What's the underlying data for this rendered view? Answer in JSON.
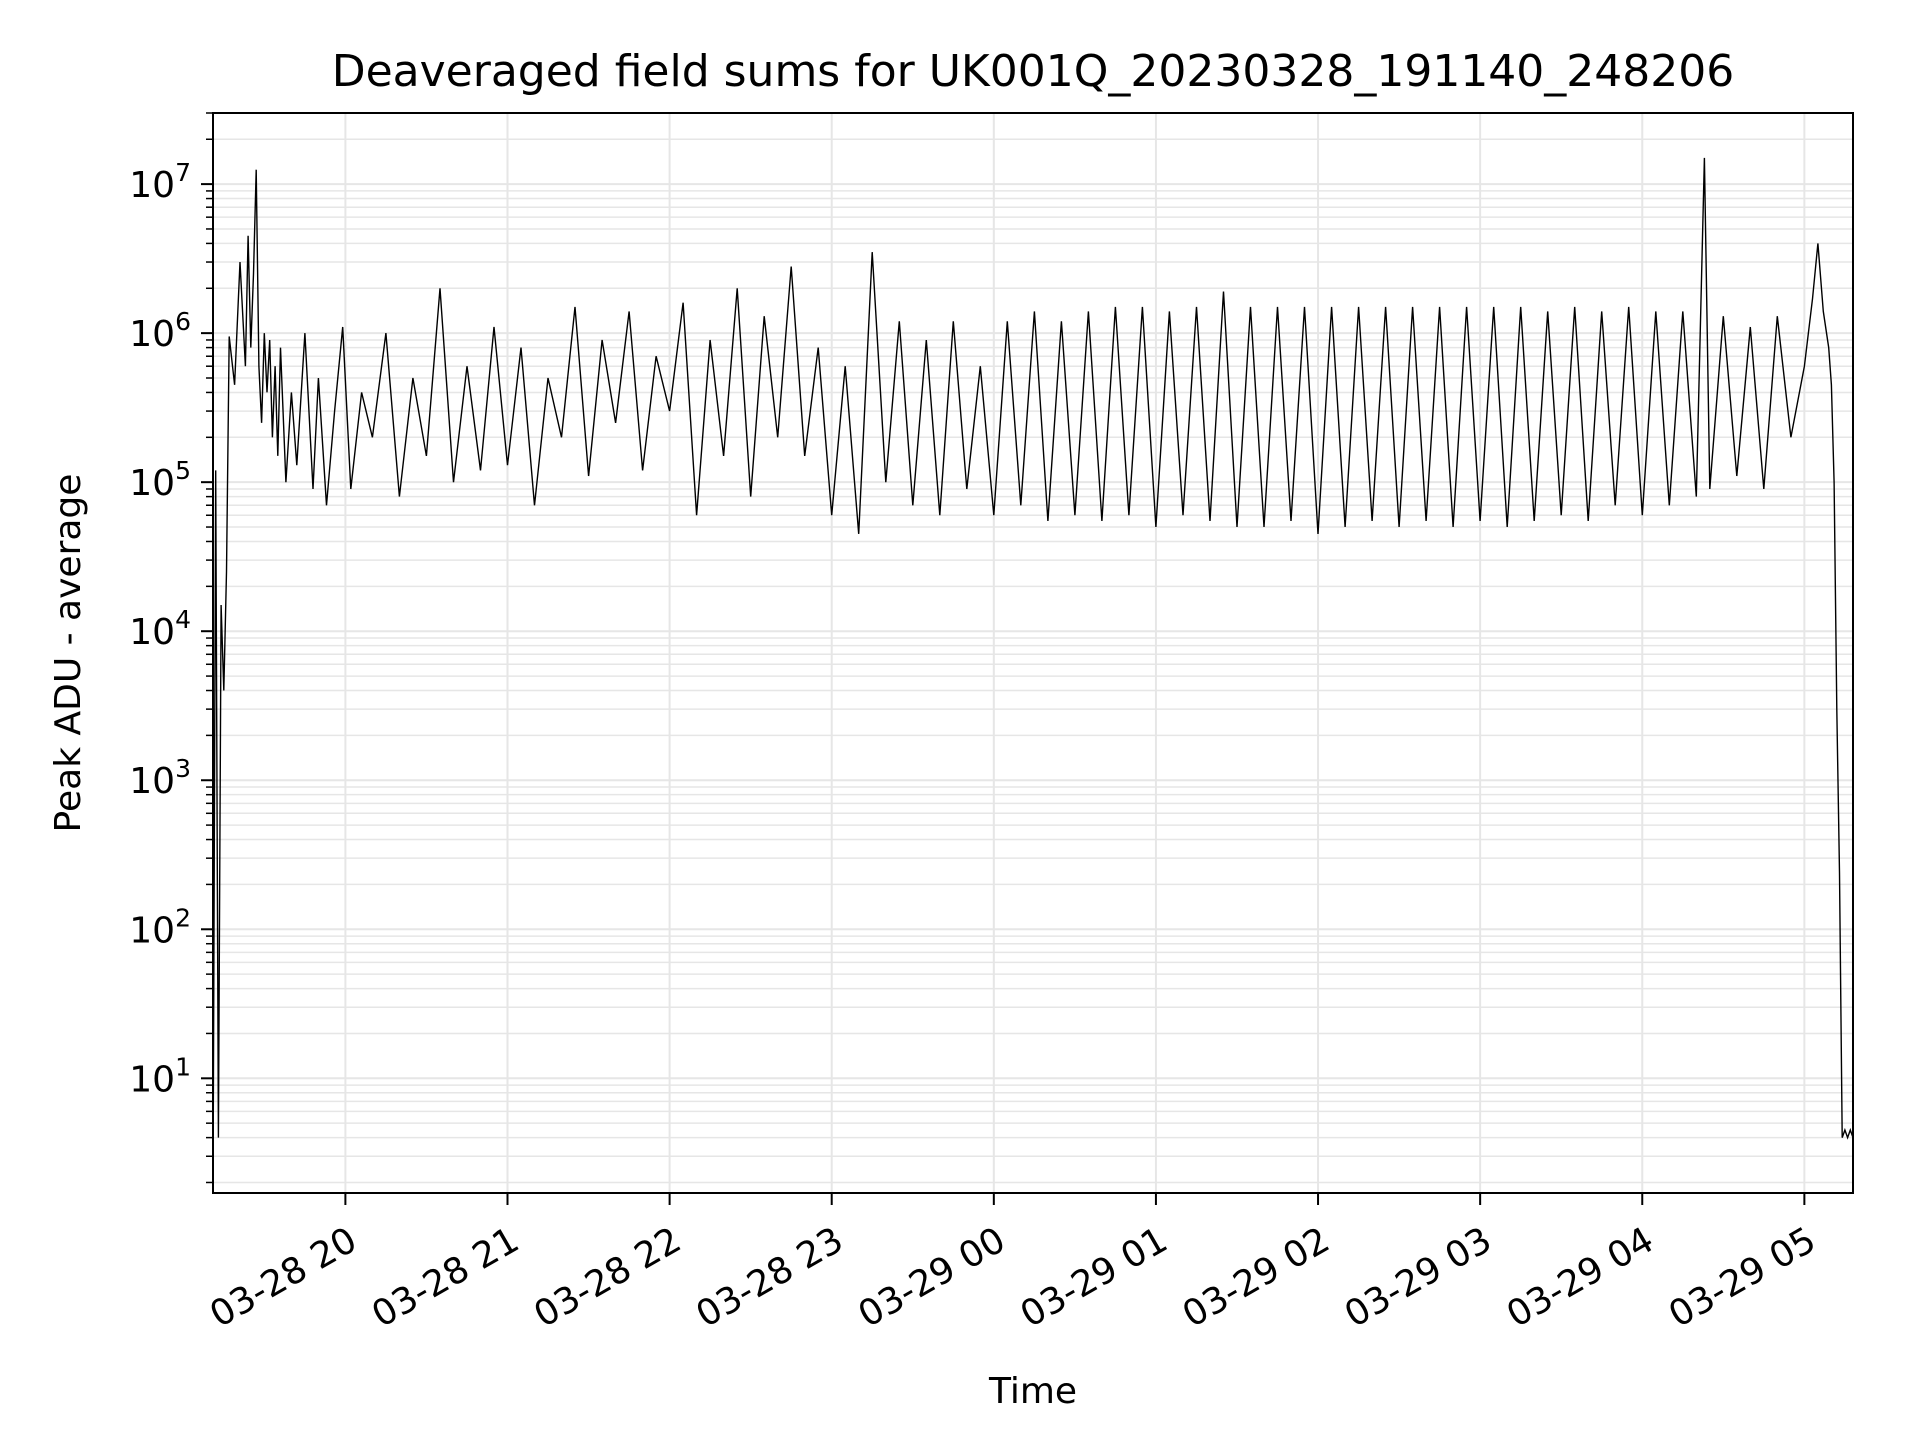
{
  "chart_data": {
    "type": "line",
    "title": "Deaveraged field sums for UK001Q_20230328_191140_248206",
    "xlabel": "Time",
    "ylabel": "Peak ADU - average",
    "yscale": "log",
    "grid": true,
    "grid_color": "#e6e6e6",
    "line_color": "#000000",
    "xlim": [
      "2023-03-28 19:11",
      "2023-03-29 05:18"
    ],
    "ylim": [
      1.7,
      30000000
    ],
    "x_ticks": [
      {
        "value": "2023-03-28 20:00",
        "label": "03-28 20"
      },
      {
        "value": "2023-03-28 21:00",
        "label": "03-28 21"
      },
      {
        "value": "2023-03-28 22:00",
        "label": "03-28 22"
      },
      {
        "value": "2023-03-28 23:00",
        "label": "03-28 23"
      },
      {
        "value": "2023-03-29 00:00",
        "label": "03-29 00"
      },
      {
        "value": "2023-03-29 01:00",
        "label": "03-29 01"
      },
      {
        "value": "2023-03-29 02:00",
        "label": "03-29 02"
      },
      {
        "value": "2023-03-29 03:00",
        "label": "03-29 03"
      },
      {
        "value": "2023-03-29 04:00",
        "label": "03-29 04"
      },
      {
        "value": "2023-03-29 05:00",
        "label": "03-29 05"
      }
    ],
    "y_ticks": [
      {
        "value": 10,
        "base": "10",
        "exp": "1"
      },
      {
        "value": 100,
        "base": "10",
        "exp": "2"
      },
      {
        "value": 1000,
        "base": "10",
        "exp": "3"
      },
      {
        "value": 10000,
        "base": "10",
        "exp": "4"
      },
      {
        "value": 100000,
        "base": "10",
        "exp": "5"
      },
      {
        "value": 1000000,
        "base": "10",
        "exp": "6"
      },
      {
        "value": 10000000,
        "base": "10",
        "exp": "7"
      }
    ],
    "series": [
      {
        "x": [
          "2023-03-28 19:11",
          "2023-03-28 19:12",
          "2023-03-28 19:13",
          "2023-03-28 19:14",
          "2023-03-28 19:15",
          "2023-03-28 19:16",
          "2023-03-28 19:17",
          "2023-03-28 19:19",
          "2023-03-28 19:21",
          "2023-03-28 19:23",
          "2023-03-28 19:24",
          "2023-03-28 19:25",
          "2023-03-28 19:26",
          "2023-03-28 19:27",
          "2023-03-28 19:28",
          "2023-03-28 19:29",
          "2023-03-28 19:30",
          "2023-03-28 19:31",
          "2023-03-28 19:32",
          "2023-03-28 19:33",
          "2023-03-28 19:34",
          "2023-03-28 19:35",
          "2023-03-28 19:36",
          "2023-03-28 19:38",
          "2023-03-28 19:40",
          "2023-03-28 19:42",
          "2023-03-28 19:45",
          "2023-03-28 19:48",
          "2023-03-28 19:50",
          "2023-03-28 19:53",
          "2023-03-28 19:56",
          "2023-03-28 19:59",
          "2023-03-28 20:02",
          "2023-03-28 20:06",
          "2023-03-28 20:10",
          "2023-03-28 20:15",
          "2023-03-28 20:20",
          "2023-03-28 20:25",
          "2023-03-28 20:30",
          "2023-03-28 20:35",
          "2023-03-28 20:40",
          "2023-03-28 20:45",
          "2023-03-28 20:50",
          "2023-03-28 20:55",
          "2023-03-28 21:00",
          "2023-03-28 21:05",
          "2023-03-28 21:10",
          "2023-03-28 21:15",
          "2023-03-28 21:20",
          "2023-03-28 21:25",
          "2023-03-28 21:30",
          "2023-03-28 21:35",
          "2023-03-28 21:40",
          "2023-03-28 21:45",
          "2023-03-28 21:50",
          "2023-03-28 21:55",
          "2023-03-28 22:00",
          "2023-03-28 22:05",
          "2023-03-28 22:10",
          "2023-03-28 22:15",
          "2023-03-28 22:20",
          "2023-03-28 22:25",
          "2023-03-28 22:30",
          "2023-03-28 22:35",
          "2023-03-28 22:40",
          "2023-03-28 22:45",
          "2023-03-28 22:50",
          "2023-03-28 22:55",
          "2023-03-28 23:00",
          "2023-03-28 23:05",
          "2023-03-28 23:10",
          "2023-03-28 23:15",
          "2023-03-28 23:20",
          "2023-03-28 23:25",
          "2023-03-28 23:30",
          "2023-03-28 23:35",
          "2023-03-28 23:40",
          "2023-03-28 23:45",
          "2023-03-28 23:50",
          "2023-03-28 23:55",
          "2023-03-29 00:00",
          "2023-03-29 00:05",
          "2023-03-29 00:10",
          "2023-03-29 00:15",
          "2023-03-29 00:20",
          "2023-03-29 00:25",
          "2023-03-29 00:30",
          "2023-03-29 00:35",
          "2023-03-29 00:40",
          "2023-03-29 00:45",
          "2023-03-29 00:50",
          "2023-03-29 00:55",
          "2023-03-29 01:00",
          "2023-03-29 01:05",
          "2023-03-29 01:10",
          "2023-03-29 01:15",
          "2023-03-29 01:20",
          "2023-03-29 01:25",
          "2023-03-29 01:30",
          "2023-03-29 01:35",
          "2023-03-29 01:40",
          "2023-03-29 01:45",
          "2023-03-29 01:50",
          "2023-03-29 01:55",
          "2023-03-29 02:00",
          "2023-03-29 02:05",
          "2023-03-29 02:10",
          "2023-03-29 02:15",
          "2023-03-29 02:20",
          "2023-03-29 02:25",
          "2023-03-29 02:30",
          "2023-03-29 02:35",
          "2023-03-29 02:40",
          "2023-03-29 02:45",
          "2023-03-29 02:50",
          "2023-03-29 02:55",
          "2023-03-29 03:00",
          "2023-03-29 03:05",
          "2023-03-29 03:10",
          "2023-03-29 03:15",
          "2023-03-29 03:20",
          "2023-03-29 03:25",
          "2023-03-29 03:30",
          "2023-03-29 03:35",
          "2023-03-29 03:40",
          "2023-03-29 03:45",
          "2023-03-29 03:50",
          "2023-03-29 03:55",
          "2023-03-29 04:00",
          "2023-03-29 04:05",
          "2023-03-29 04:10",
          "2023-03-29 04:15",
          "2023-03-29 04:20",
          "2023-03-29 04:23",
          "2023-03-29 04:25",
          "2023-03-29 04:30",
          "2023-03-29 04:35",
          "2023-03-29 04:40",
          "2023-03-29 04:45",
          "2023-03-29 04:50",
          "2023-03-29 04:55",
          "2023-03-29 05:00",
          "2023-03-29 05:03",
          "2023-03-29 05:05",
          "2023-03-29 05:07",
          "2023-03-29 05:09",
          "2023-03-29 05:10",
          "2023-03-29 05:11",
          "2023-03-29 05:12",
          "2023-03-29 05:13",
          "2023-03-29 05:14",
          "2023-03-29 05:15",
          "2023-03-29 05:16",
          "2023-03-29 05:17",
          "2023-03-29 05:18"
        ],
        "y": [
          1.7,
          120000,
          4,
          15000,
          4000,
          25000,
          950000,
          450000,
          3000000,
          600000,
          4500000,
          800000,
          2500000,
          12500000,
          600000,
          250000,
          1000000,
          400000,
          900000,
          200000,
          600000,
          150000,
          800000,
          100000,
          400000,
          130000,
          1000000,
          90000,
          500000,
          70000,
          300000,
          1100000,
          90000,
          400000,
          200000,
          1000000,
          80000,
          500000,
          150000,
          2000000,
          100000,
          600000,
          120000,
          1100000,
          130000,
          800000,
          70000,
          500000,
          200000,
          1500000,
          110000,
          900000,
          250000,
          1400000,
          120000,
          700000,
          300000,
          1600000,
          60000,
          900000,
          150000,
          2000000,
          80000,
          1300000,
          200000,
          2800000,
          150000,
          800000,
          60000,
          600000,
          45000,
          3500000,
          100000,
          1200000,
          70000,
          900000,
          60000,
          1200000,
          90000,
          600000,
          60000,
          1200000,
          70000,
          1400000,
          55000,
          1200000,
          60000,
          1400000,
          55000,
          1500000,
          60000,
          1500000,
          50000,
          1400000,
          60000,
          1500000,
          55000,
          1900000,
          50000,
          1500000,
          50000,
          1500000,
          55000,
          1500000,
          45000,
          1500000,
          50000,
          1500000,
          55000,
          1500000,
          50000,
          1500000,
          55000,
          1500000,
          50000,
          1500000,
          55000,
          1500000,
          50000,
          1500000,
          55000,
          1400000,
          60000,
          1500000,
          55000,
          1400000,
          70000,
          1500000,
          60000,
          1400000,
          70000,
          1400000,
          80000,
          15000000,
          90000,
          1300000,
          110000,
          1100000,
          90000,
          1300000,
          200000,
          600000,
          1700000,
          4000000,
          1400000,
          800000,
          450000,
          100000,
          3000,
          240,
          4,
          4.5,
          4,
          4.5,
          4
        ]
      }
    ]
  }
}
